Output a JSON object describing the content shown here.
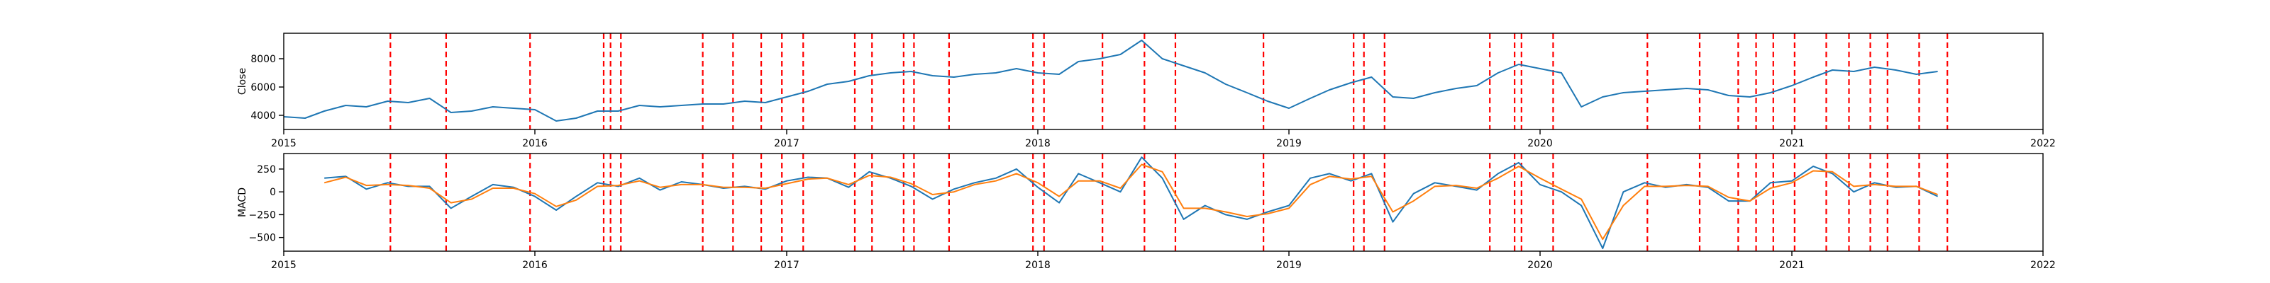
{
  "chart_data": [
    {
      "type": "line",
      "ylabel": "Close",
      "xlim": [
        "2015-01-01",
        "2022-01-01"
      ],
      "ylim": [
        3000,
        9800
      ],
      "x_ticks": [
        "2015",
        "2016",
        "2017",
        "2018",
        "2019",
        "2020",
        "2021",
        "2022"
      ],
      "y_ticks": [
        4000,
        6000,
        8000
      ],
      "grid": false,
      "series": [
        {
          "color": "#1f77b4",
          "points": [
            [
              "2015-01-01",
              3900
            ],
            [
              "2015-02-01",
              3800
            ],
            [
              "2015-03-01",
              4300
            ],
            [
              "2015-04-01",
              4700
            ],
            [
              "2015-05-01",
              4600
            ],
            [
              "2015-06-01",
              5000
            ],
            [
              "2015-07-01",
              4900
            ],
            [
              "2015-08-01",
              5200
            ],
            [
              "2015-09-01",
              4200
            ],
            [
              "2015-10-01",
              4300
            ],
            [
              "2015-11-01",
              4600
            ],
            [
              "2015-12-01",
              4500
            ],
            [
              "2016-01-01",
              4400
            ],
            [
              "2016-02-01",
              3600
            ],
            [
              "2016-03-01",
              3800
            ],
            [
              "2016-04-01",
              4300
            ],
            [
              "2016-05-01",
              4300
            ],
            [
              "2016-06-01",
              4700
            ],
            [
              "2016-07-01",
              4600
            ],
            [
              "2016-08-01",
              4700
            ],
            [
              "2016-09-01",
              4800
            ],
            [
              "2016-10-01",
              4800
            ],
            [
              "2016-11-01",
              5000
            ],
            [
              "2016-12-01",
              4900
            ],
            [
              "2017-01-01",
              5300
            ],
            [
              "2017-02-01",
              5700
            ],
            [
              "2017-03-01",
              6200
            ],
            [
              "2017-04-01",
              6400
            ],
            [
              "2017-05-01",
              6800
            ],
            [
              "2017-06-01",
              7000
            ],
            [
              "2017-07-01",
              7100
            ],
            [
              "2017-08-01",
              6800
            ],
            [
              "2017-09-01",
              6700
            ],
            [
              "2017-10-01",
              6900
            ],
            [
              "2017-11-01",
              7000
            ],
            [
              "2017-12-01",
              7300
            ],
            [
              "2018-01-01",
              7000
            ],
            [
              "2018-02-01",
              6900
            ],
            [
              "2018-03-01",
              7800
            ],
            [
              "2018-04-01",
              8000
            ],
            [
              "2018-05-01",
              8300
            ],
            [
              "2018-06-01",
              9300
            ],
            [
              "2018-07-01",
              8000
            ],
            [
              "2018-08-01",
              7500
            ],
            [
              "2018-09-01",
              7000
            ],
            [
              "2018-10-01",
              6200
            ],
            [
              "2018-11-01",
              5600
            ],
            [
              "2018-12-01",
              5000
            ],
            [
              "2019-01-01",
              4500
            ],
            [
              "2019-02-01",
              5200
            ],
            [
              "2019-03-01",
              5800
            ],
            [
              "2019-04-01",
              6300
            ],
            [
              "2019-05-01",
              6700
            ],
            [
              "2019-06-01",
              5300
            ],
            [
              "2019-07-01",
              5200
            ],
            [
              "2019-08-01",
              5600
            ],
            [
              "2019-09-01",
              5900
            ],
            [
              "2019-10-01",
              6100
            ],
            [
              "2019-11-01",
              7000
            ],
            [
              "2019-12-01",
              7600
            ],
            [
              "2020-01-01",
              7300
            ],
            [
              "2020-02-01",
              7000
            ],
            [
              "2020-03-01",
              4600
            ],
            [
              "2020-04-01",
              5300
            ],
            [
              "2020-05-01",
              5600
            ],
            [
              "2020-06-01",
              5700
            ],
            [
              "2020-07-01",
              5800
            ],
            [
              "2020-08-01",
              5900
            ],
            [
              "2020-09-01",
              5800
            ],
            [
              "2020-10-01",
              5400
            ],
            [
              "2020-11-01",
              5300
            ],
            [
              "2020-12-01",
              5600
            ],
            [
              "2021-01-01",
              6100
            ],
            [
              "2021-02-01",
              6700
            ],
            [
              "2021-03-01",
              7200
            ],
            [
              "2021-04-01",
              7100
            ],
            [
              "2021-05-01",
              7400
            ],
            [
              "2021-06-01",
              7200
            ],
            [
              "2021-07-01",
              6900
            ],
            [
              "2021-08-01",
              7100
            ]
          ]
        }
      ]
    },
    {
      "type": "line",
      "ylabel": "MACD",
      "xlim": [
        "2015-01-01",
        "2022-01-01"
      ],
      "ylim": [
        -650,
        420
      ],
      "x_ticks": [
        "2015",
        "2016",
        "2017",
        "2018",
        "2019",
        "2020",
        "2021",
        "2022"
      ],
      "y_ticks": [
        250,
        0,
        -250,
        -500
      ],
      "grid": false,
      "series": [
        {
          "color": "#1f77b4",
          "points": [
            [
              "2015-03-01",
              150
            ],
            [
              "2015-04-01",
              170
            ],
            [
              "2015-05-01",
              30
            ],
            [
              "2015-06-01",
              100
            ],
            [
              "2015-07-01",
              60
            ],
            [
              "2015-08-01",
              60
            ],
            [
              "2015-09-01",
              -180
            ],
            [
              "2015-10-01",
              -50
            ],
            [
              "2015-11-01",
              80
            ],
            [
              "2015-12-01",
              50
            ],
            [
              "2016-01-01",
              -50
            ],
            [
              "2016-02-01",
              -200
            ],
            [
              "2016-03-01",
              -50
            ],
            [
              "2016-04-01",
              100
            ],
            [
              "2016-05-01",
              60
            ],
            [
              "2016-06-01",
              150
            ],
            [
              "2016-07-01",
              20
            ],
            [
              "2016-08-01",
              110
            ],
            [
              "2016-09-01",
              80
            ],
            [
              "2016-10-01",
              40
            ],
            [
              "2016-11-01",
              60
            ],
            [
              "2016-12-01",
              30
            ],
            [
              "2017-01-01",
              120
            ],
            [
              "2017-02-01",
              160
            ],
            [
              "2017-03-01",
              150
            ],
            [
              "2017-04-01",
              50
            ],
            [
              "2017-05-01",
              220
            ],
            [
              "2017-06-01",
              150
            ],
            [
              "2017-07-01",
              60
            ],
            [
              "2017-08-01",
              -80
            ],
            [
              "2017-09-01",
              30
            ],
            [
              "2017-10-01",
              100
            ],
            [
              "2017-11-01",
              150
            ],
            [
              "2017-12-01",
              250
            ],
            [
              "2018-01-01",
              50
            ],
            [
              "2018-02-01",
              -120
            ],
            [
              "2018-03-01",
              200
            ],
            [
              "2018-04-01",
              100
            ],
            [
              "2018-05-01",
              0
            ],
            [
              "2018-06-01",
              380
            ],
            [
              "2018-07-01",
              150
            ],
            [
              "2018-08-01",
              -300
            ],
            [
              "2018-09-01",
              -150
            ],
            [
              "2018-10-01",
              -250
            ],
            [
              "2018-11-01",
              -300
            ],
            [
              "2018-12-01",
              -220
            ],
            [
              "2019-01-01",
              -150
            ],
            [
              "2019-02-01",
              150
            ],
            [
              "2019-03-01",
              200
            ],
            [
              "2019-04-01",
              120
            ],
            [
              "2019-05-01",
              200
            ],
            [
              "2019-06-01",
              -330
            ],
            [
              "2019-07-01",
              -20
            ],
            [
              "2019-08-01",
              100
            ],
            [
              "2019-09-01",
              60
            ],
            [
              "2019-10-01",
              20
            ],
            [
              "2019-11-01",
              200
            ],
            [
              "2019-12-01",
              320
            ],
            [
              "2020-01-01",
              80
            ],
            [
              "2020-02-01",
              0
            ],
            [
              "2020-03-01",
              -150
            ],
            [
              "2020-04-01",
              -620
            ],
            [
              "2020-05-01",
              0
            ],
            [
              "2020-06-01",
              100
            ],
            [
              "2020-07-01",
              50
            ],
            [
              "2020-08-01",
              80
            ],
            [
              "2020-09-01",
              50
            ],
            [
              "2020-10-01",
              -100
            ],
            [
              "2020-11-01",
              -100
            ],
            [
              "2020-12-01",
              100
            ],
            [
              "2021-01-01",
              120
            ],
            [
              "2021-02-01",
              280
            ],
            [
              "2021-03-01",
              200
            ],
            [
              "2021-04-01",
              0
            ],
            [
              "2021-05-01",
              100
            ],
            [
              "2021-06-01",
              50
            ],
            [
              "2021-07-01",
              60
            ],
            [
              "2021-08-01",
              -50
            ]
          ]
        },
        {
          "color": "#ff7f0e",
          "points": [
            [
              "2015-03-01",
              100
            ],
            [
              "2015-04-01",
              160
            ],
            [
              "2015-05-01",
              70
            ],
            [
              "2015-06-01",
              80
            ],
            [
              "2015-07-01",
              70
            ],
            [
              "2015-08-01",
              40
            ],
            [
              "2015-09-01",
              -120
            ],
            [
              "2015-10-01",
              -80
            ],
            [
              "2015-11-01",
              40
            ],
            [
              "2015-12-01",
              40
            ],
            [
              "2016-01-01",
              -20
            ],
            [
              "2016-02-01",
              -160
            ],
            [
              "2016-03-01",
              -90
            ],
            [
              "2016-04-01",
              60
            ],
            [
              "2016-05-01",
              70
            ],
            [
              "2016-06-01",
              120
            ],
            [
              "2016-07-01",
              50
            ],
            [
              "2016-08-01",
              80
            ],
            [
              "2016-09-01",
              80
            ],
            [
              "2016-10-01",
              50
            ],
            [
              "2016-11-01",
              50
            ],
            [
              "2016-12-01",
              40
            ],
            [
              "2017-01-01",
              90
            ],
            [
              "2017-02-01",
              140
            ],
            [
              "2017-03-01",
              150
            ],
            [
              "2017-04-01",
              80
            ],
            [
              "2017-05-01",
              180
            ],
            [
              "2017-06-01",
              160
            ],
            [
              "2017-07-01",
              90
            ],
            [
              "2017-08-01",
              -30
            ],
            [
              "2017-09-01",
              0
            ],
            [
              "2017-10-01",
              80
            ],
            [
              "2017-11-01",
              120
            ],
            [
              "2017-12-01",
              200
            ],
            [
              "2018-01-01",
              100
            ],
            [
              "2018-02-01",
              -50
            ],
            [
              "2018-03-01",
              120
            ],
            [
              "2018-04-01",
              120
            ],
            [
              "2018-05-01",
              40
            ],
            [
              "2018-06-01",
              300
            ],
            [
              "2018-07-01",
              220
            ],
            [
              "2018-08-01",
              -180
            ],
            [
              "2018-09-01",
              -180
            ],
            [
              "2018-10-01",
              -220
            ],
            [
              "2018-11-01",
              -270
            ],
            [
              "2018-12-01",
              -240
            ],
            [
              "2019-01-01",
              -180
            ],
            [
              "2019-02-01",
              80
            ],
            [
              "2019-03-01",
              170
            ],
            [
              "2019-04-01",
              140
            ],
            [
              "2019-05-01",
              170
            ],
            [
              "2019-06-01",
              -220
            ],
            [
              "2019-07-01",
              -100
            ],
            [
              "2019-08-01",
              60
            ],
            [
              "2019-09-01",
              70
            ],
            [
              "2019-10-01",
              40
            ],
            [
              "2019-11-01",
              150
            ],
            [
              "2019-12-01",
              280
            ],
            [
              "2020-01-01",
              150
            ],
            [
              "2020-02-01",
              30
            ],
            [
              "2020-03-01",
              -80
            ],
            [
              "2020-04-01",
              -520
            ],
            [
              "2020-05-01",
              -150
            ],
            [
              "2020-06-01",
              60
            ],
            [
              "2020-07-01",
              60
            ],
            [
              "2020-08-01",
              70
            ],
            [
              "2020-09-01",
              60
            ],
            [
              "2020-10-01",
              -60
            ],
            [
              "2020-11-01",
              -100
            ],
            [
              "2020-12-01",
              40
            ],
            [
              "2021-01-01",
              100
            ],
            [
              "2021-02-01",
              230
            ],
            [
              "2021-03-01",
              220
            ],
            [
              "2021-04-01",
              60
            ],
            [
              "2021-05-01",
              80
            ],
            [
              "2021-06-01",
              60
            ],
            [
              "2021-07-01",
              60
            ],
            [
              "2021-08-01",
              -30
            ]
          ]
        }
      ]
    }
  ],
  "event_lines": {
    "color": "#ff0000",
    "dates": [
      "2015-06-05",
      "2015-08-25",
      "2015-12-25",
      "2016-04-10",
      "2016-04-20",
      "2016-05-05",
      "2016-09-01",
      "2016-10-15",
      "2016-11-25",
      "2016-12-25",
      "2017-01-25",
      "2017-04-10",
      "2017-05-05",
      "2017-06-20",
      "2017-07-05",
      "2017-08-25",
      "2017-12-25",
      "2018-01-10",
      "2018-04-05",
      "2018-06-05",
      "2018-07-20",
      "2018-11-25",
      "2019-04-05",
      "2019-04-20",
      "2019-05-20",
      "2019-10-20",
      "2019-11-25",
      "2019-12-05",
      "2020-01-20",
      "2020-06-05",
      "2020-08-20",
      "2020-10-15",
      "2020-11-10",
      "2020-12-05",
      "2021-01-05",
      "2021-02-20",
      "2021-03-25",
      "2021-04-25",
      "2021-05-20",
      "2021-07-05",
      "2021-08-15"
    ]
  }
}
